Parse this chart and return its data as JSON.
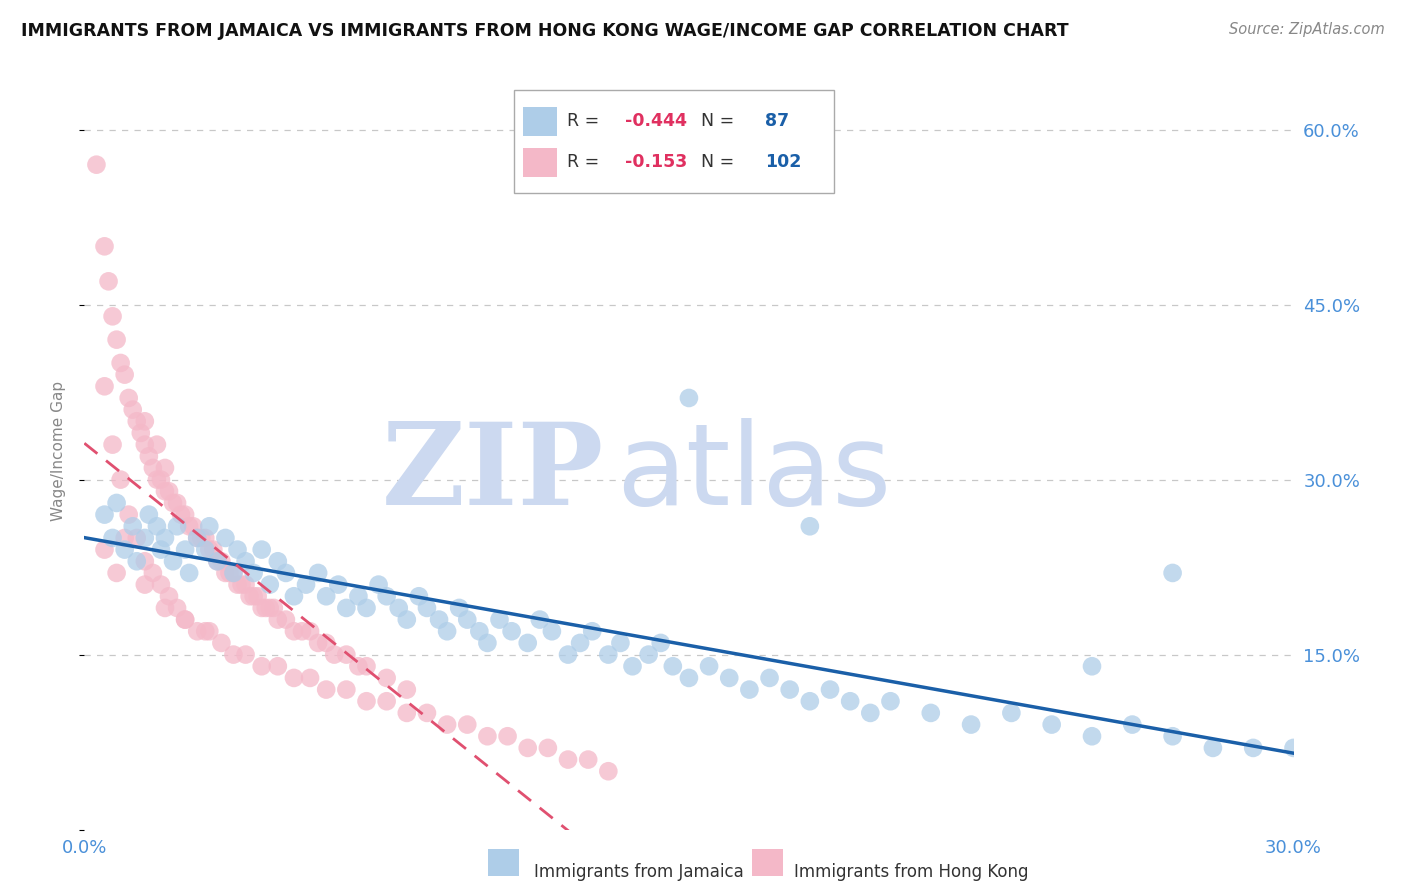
{
  "title": "IMMIGRANTS FROM JAMAICA VS IMMIGRANTS FROM HONG KONG WAGE/INCOME GAP CORRELATION CHART",
  "source": "Source: ZipAtlas.com",
  "ylabel": "Wage/Income Gap",
  "xlim": [
    0.0,
    0.3
  ],
  "ylim": [
    0.0,
    0.65
  ],
  "xticks": [
    0.0,
    0.05,
    0.1,
    0.15,
    0.2,
    0.25,
    0.3
  ],
  "yticks": [
    0.0,
    0.15,
    0.3,
    0.45,
    0.6
  ],
  "ytick_labels": [
    "",
    "15.0%",
    "30.0%",
    "45.0%",
    "60.0%"
  ],
  "jamaica_color": "#aecde8",
  "jamaica_edge": "#aecde8",
  "hk_color": "#f4b8c8",
  "hk_edge": "#f4b8c8",
  "trend_jamaica_color": "#1a5fa8",
  "trend_hk_color": "#e05070",
  "background_color": "#ffffff",
  "grid_color": "#c8c8c8",
  "axis_label_color": "#4a90d9",
  "text_color": "#333333",
  "jamaica_scatter_x": [
    0.005,
    0.007,
    0.008,
    0.01,
    0.012,
    0.013,
    0.015,
    0.016,
    0.018,
    0.019,
    0.02,
    0.022,
    0.023,
    0.025,
    0.026,
    0.028,
    0.03,
    0.031,
    0.033,
    0.035,
    0.037,
    0.038,
    0.04,
    0.042,
    0.044,
    0.046,
    0.048,
    0.05,
    0.052,
    0.055,
    0.058,
    0.06,
    0.063,
    0.065,
    0.068,
    0.07,
    0.073,
    0.075,
    0.078,
    0.08,
    0.083,
    0.085,
    0.088,
    0.09,
    0.093,
    0.095,
    0.098,
    0.1,
    0.103,
    0.106,
    0.11,
    0.113,
    0.116,
    0.12,
    0.123,
    0.126,
    0.13,
    0.133,
    0.136,
    0.14,
    0.143,
    0.146,
    0.15,
    0.155,
    0.16,
    0.165,
    0.17,
    0.175,
    0.18,
    0.185,
    0.19,
    0.195,
    0.2,
    0.21,
    0.22,
    0.23,
    0.24,
    0.25,
    0.26,
    0.27,
    0.28,
    0.29,
    0.3,
    0.18,
    0.25,
    0.27,
    0.15
  ],
  "jamaica_scatter_y": [
    0.27,
    0.25,
    0.28,
    0.24,
    0.26,
    0.23,
    0.25,
    0.27,
    0.26,
    0.24,
    0.25,
    0.23,
    0.26,
    0.24,
    0.22,
    0.25,
    0.24,
    0.26,
    0.23,
    0.25,
    0.22,
    0.24,
    0.23,
    0.22,
    0.24,
    0.21,
    0.23,
    0.22,
    0.2,
    0.21,
    0.22,
    0.2,
    0.21,
    0.19,
    0.2,
    0.19,
    0.21,
    0.2,
    0.19,
    0.18,
    0.2,
    0.19,
    0.18,
    0.17,
    0.19,
    0.18,
    0.17,
    0.16,
    0.18,
    0.17,
    0.16,
    0.18,
    0.17,
    0.15,
    0.16,
    0.17,
    0.15,
    0.16,
    0.14,
    0.15,
    0.16,
    0.14,
    0.13,
    0.14,
    0.13,
    0.12,
    0.13,
    0.12,
    0.11,
    0.12,
    0.11,
    0.1,
    0.11,
    0.1,
    0.09,
    0.1,
    0.09,
    0.08,
    0.09,
    0.08,
    0.07,
    0.07,
    0.07,
    0.26,
    0.14,
    0.22,
    0.37
  ],
  "hk_scatter_x": [
    0.003,
    0.005,
    0.006,
    0.007,
    0.008,
    0.009,
    0.01,
    0.011,
    0.012,
    0.013,
    0.014,
    0.015,
    0.015,
    0.016,
    0.017,
    0.018,
    0.018,
    0.019,
    0.02,
    0.02,
    0.021,
    0.022,
    0.023,
    0.024,
    0.025,
    0.026,
    0.027,
    0.028,
    0.029,
    0.03,
    0.031,
    0.032,
    0.033,
    0.034,
    0.035,
    0.036,
    0.037,
    0.038,
    0.039,
    0.04,
    0.041,
    0.042,
    0.043,
    0.044,
    0.045,
    0.046,
    0.047,
    0.048,
    0.05,
    0.052,
    0.054,
    0.056,
    0.058,
    0.06,
    0.062,
    0.065,
    0.068,
    0.07,
    0.075,
    0.08,
    0.005,
    0.007,
    0.009,
    0.011,
    0.013,
    0.015,
    0.017,
    0.019,
    0.021,
    0.023,
    0.025,
    0.028,
    0.031,
    0.034,
    0.037,
    0.04,
    0.044,
    0.048,
    0.052,
    0.056,
    0.06,
    0.065,
    0.07,
    0.075,
    0.08,
    0.085,
    0.09,
    0.095,
    0.1,
    0.105,
    0.11,
    0.115,
    0.12,
    0.125,
    0.13,
    0.005,
    0.008,
    0.01,
    0.015,
    0.02,
    0.025,
    0.03
  ],
  "hk_scatter_y": [
    0.57,
    0.5,
    0.47,
    0.44,
    0.42,
    0.4,
    0.39,
    0.37,
    0.36,
    0.35,
    0.34,
    0.33,
    0.35,
    0.32,
    0.31,
    0.3,
    0.33,
    0.3,
    0.29,
    0.31,
    0.29,
    0.28,
    0.28,
    0.27,
    0.27,
    0.26,
    0.26,
    0.25,
    0.25,
    0.25,
    0.24,
    0.24,
    0.23,
    0.23,
    0.22,
    0.22,
    0.22,
    0.21,
    0.21,
    0.21,
    0.2,
    0.2,
    0.2,
    0.19,
    0.19,
    0.19,
    0.19,
    0.18,
    0.18,
    0.17,
    0.17,
    0.17,
    0.16,
    0.16,
    0.15,
    0.15,
    0.14,
    0.14,
    0.13,
    0.12,
    0.38,
    0.33,
    0.3,
    0.27,
    0.25,
    0.23,
    0.22,
    0.21,
    0.2,
    0.19,
    0.18,
    0.17,
    0.17,
    0.16,
    0.15,
    0.15,
    0.14,
    0.14,
    0.13,
    0.13,
    0.12,
    0.12,
    0.11,
    0.11,
    0.1,
    0.1,
    0.09,
    0.09,
    0.08,
    0.08,
    0.07,
    0.07,
    0.06,
    0.06,
    0.05,
    0.24,
    0.22,
    0.25,
    0.21,
    0.19,
    0.18,
    0.17
  ],
  "legend_jamaica_label": "Immigrants from Jamaica",
  "legend_hk_label": "Immigrants from Hong Kong",
  "legend_R_jamaica": "-0.444",
  "legend_N_jamaica": "87",
  "legend_R_hk": "-0.153",
  "legend_N_hk": "102",
  "watermark_zip": "ZIP",
  "watermark_atlas": "atlas",
  "watermark_color": "#ccd9f0"
}
